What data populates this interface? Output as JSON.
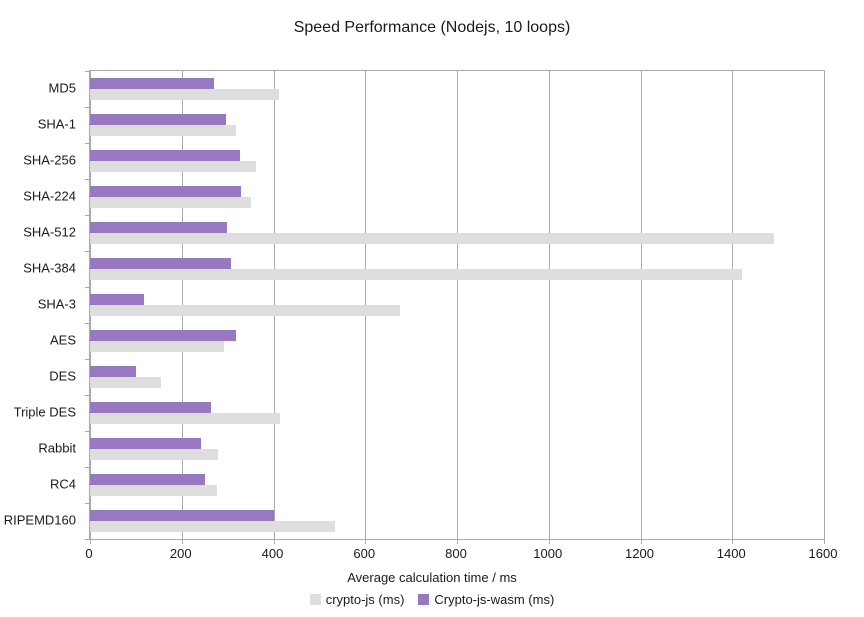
{
  "title": "Speed Performance (Nodejs, 10 loops)",
  "chart_data": {
    "type": "bar",
    "orientation": "horizontal",
    "title": "Speed Performance (Nodejs, 10 loops)",
    "categories": [
      "MD5",
      "SHA-1",
      "SHA-256",
      "SHA-224",
      "SHA-512",
      "SHA-384",
      "SHA-3",
      "AES",
      "DES",
      "Triple DES",
      "Rabbit",
      "RC4",
      "RIPEMD160"
    ],
    "series": [
      {
        "name": "crypto-js (ms)",
        "color": "#dedede",
        "values": [
          412,
          319,
          362,
          352,
          1490,
          1421,
          675,
          292,
          155,
          415,
          278,
          276,
          534
        ]
      },
      {
        "name": "Crypto-js-wasm (ms)",
        "color": "#9879bf",
        "values": [
          270,
          296,
          328,
          329,
          299,
          307,
          118,
          319,
          100,
          264,
          242,
          250,
          400
        ]
      }
    ],
    "xlabel": "Average calculation time / ms",
    "ylabel": "",
    "xlim": [
      0,
      1600
    ],
    "xticks": [
      0,
      200,
      400,
      600,
      800,
      1000,
      1200,
      1400,
      1600
    ],
    "grid": true,
    "legend_position": "bottom"
  },
  "colors": {
    "background": "#ffffff",
    "grid": "#aaaaaa",
    "text": "#1a1a1a",
    "series_cryptojs": "#dedede",
    "series_wasm": "#9879bf"
  }
}
